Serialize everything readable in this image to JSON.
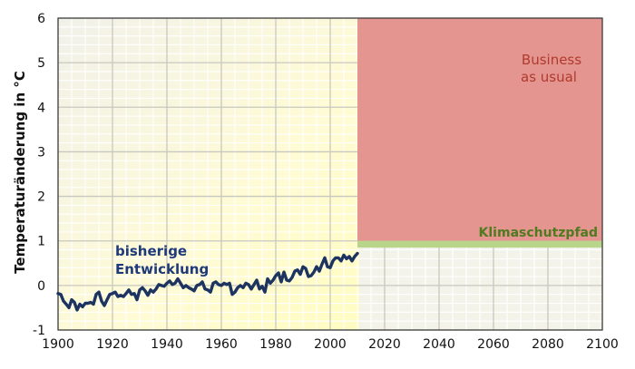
{
  "chart_data": {
    "type": "line",
    "title": "",
    "xlabel": "",
    "ylabel": "Temperaturänderung in °C",
    "xlim": [
      1900,
      2100
    ],
    "ylim": [
      -1,
      6
    ],
    "x_ticks": [
      1900,
      1920,
      1940,
      1960,
      1980,
      2000,
      2020,
      2040,
      2060,
      2080,
      2100
    ],
    "y_ticks": [
      -1,
      0,
      1,
      2,
      3,
      4,
      5,
      6
    ],
    "grid": true,
    "series": [
      {
        "name": "bisherige Entwicklung",
        "color": "#1d3461",
        "x": [
          1900,
          1901,
          1902,
          1903,
          1904,
          1905,
          1906,
          1907,
          1908,
          1909,
          1910,
          1911,
          1912,
          1913,
          1914,
          1915,
          1916,
          1917,
          1918,
          1919,
          1920,
          1921,
          1922,
          1923,
          1924,
          1925,
          1926,
          1927,
          1928,
          1929,
          1930,
          1931,
          1932,
          1933,
          1934,
          1935,
          1936,
          1937,
          1938,
          1939,
          1940,
          1941,
          1942,
          1943,
          1944,
          1945,
          1946,
          1947,
          1948,
          1949,
          1950,
          1951,
          1952,
          1953,
          1954,
          1955,
          1956,
          1957,
          1958,
          1959,
          1960,
          1961,
          1962,
          1963,
          1964,
          1965,
          1966,
          1967,
          1968,
          1969,
          1970,
          1971,
          1972,
          1973,
          1974,
          1975,
          1976,
          1977,
          1978,
          1979,
          1980,
          1981,
          1982,
          1983,
          1984,
          1985,
          1986,
          1987,
          1988,
          1989,
          1990,
          1991,
          1992,
          1993,
          1994,
          1995,
          1996,
          1997,
          1998,
          1999,
          2000,
          2001,
          2002,
          2003,
          2004,
          2005,
          2006,
          2007,
          2008,
          2009,
          2010
        ],
        "values": [
          -0.18,
          -0.2,
          -0.35,
          -0.42,
          -0.5,
          -0.32,
          -0.38,
          -0.55,
          -0.42,
          -0.48,
          -0.4,
          -0.4,
          -0.38,
          -0.42,
          -0.2,
          -0.15,
          -0.35,
          -0.45,
          -0.32,
          -0.2,
          -0.18,
          -0.15,
          -0.25,
          -0.22,
          -0.25,
          -0.18,
          -0.1,
          -0.2,
          -0.18,
          -0.32,
          -0.1,
          -0.05,
          -0.12,
          -0.22,
          -0.1,
          -0.15,
          -0.08,
          0.02,
          0.0,
          -0.02,
          0.05,
          0.1,
          0.02,
          0.05,
          0.15,
          0.05,
          -0.05,
          0.0,
          -0.05,
          -0.08,
          -0.12,
          0.0,
          0.02,
          0.08,
          -0.08,
          -0.1,
          -0.15,
          0.05,
          0.08,
          0.02,
          0.0,
          0.05,
          0.02,
          0.05,
          -0.2,
          -0.15,
          -0.05,
          0.0,
          -0.05,
          0.05,
          0.02,
          -0.08,
          0.02,
          0.12,
          -0.08,
          -0.02,
          -0.15,
          0.15,
          0.05,
          0.12,
          0.22,
          0.28,
          0.08,
          0.3,
          0.12,
          0.1,
          0.18,
          0.32,
          0.35,
          0.25,
          0.42,
          0.38,
          0.2,
          0.22,
          0.3,
          0.42,
          0.32,
          0.48,
          0.62,
          0.42,
          0.4,
          0.55,
          0.62,
          0.62,
          0.55,
          0.68,
          0.6,
          0.65,
          0.55,
          0.65,
          0.72
        ]
      }
    ],
    "annotations": {
      "history_label_line1": "bisherige",
      "history_label_line2": "Entwicklung",
      "bau_label_line1": "Business",
      "bau_label_line2": "as usual",
      "path_label": "Klimaschutzpfad"
    },
    "regions": {
      "history": {
        "x": [
          1900,
          2010
        ],
        "color": "#fffacd"
      },
      "business_as_usual": {
        "x": [
          2010,
          2100
        ],
        "y": [
          1,
          6
        ],
        "color": "#e49590",
        "text_color": "#b03a2e"
      },
      "klimaschutzpfad": {
        "x": [
          2010,
          2100
        ],
        "y": [
          0.85,
          1.0
        ],
        "color": "#b9d58a"
      },
      "future_background": "#f3f3ea"
    }
  }
}
